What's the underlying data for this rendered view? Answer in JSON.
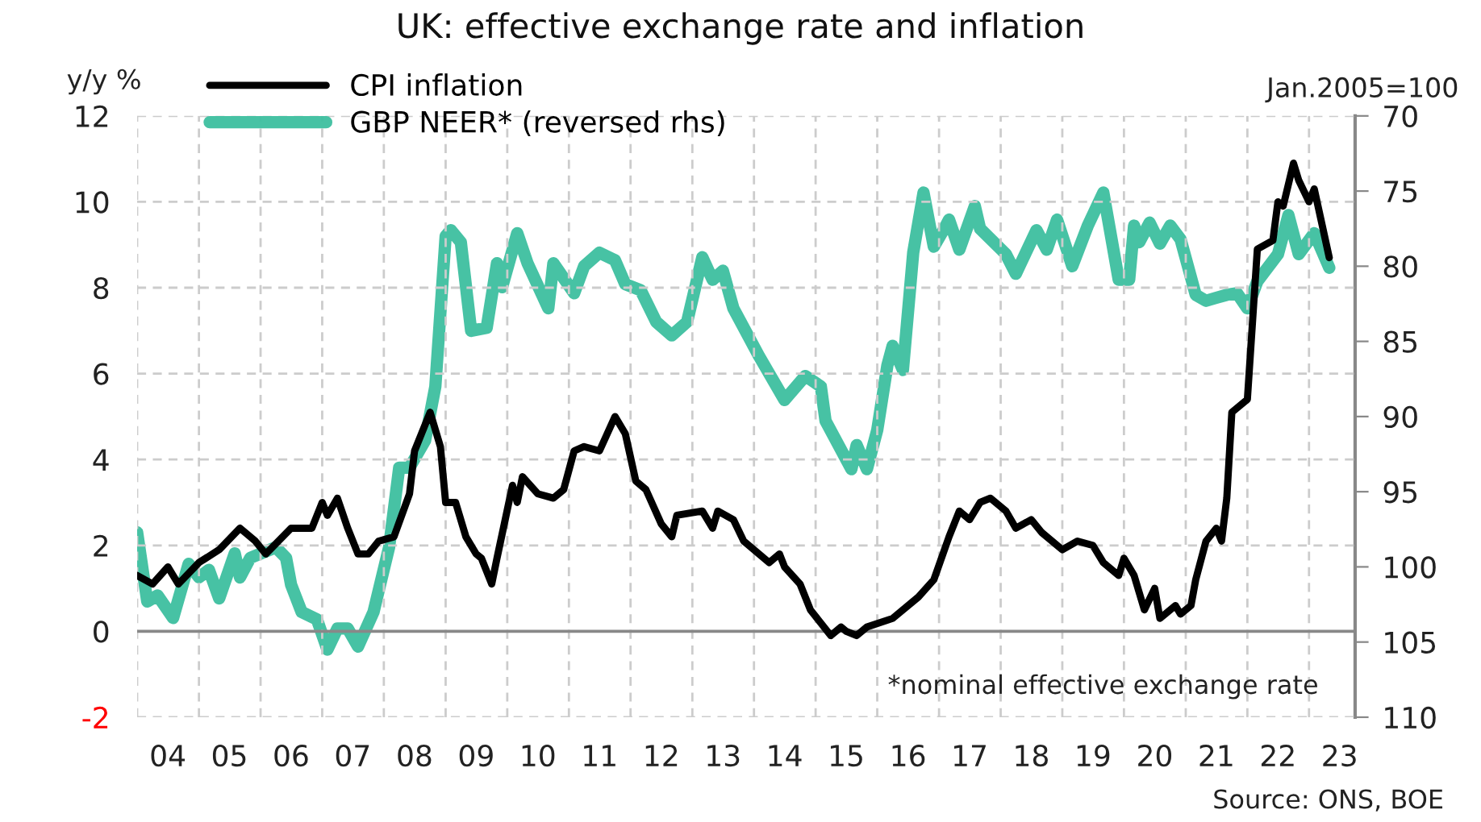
{
  "chart_data": {
    "type": "line",
    "title": "UK: effective exchange rate and inflation",
    "ylabel": "y/y %",
    "y2label": "Jan.2005=100",
    "annotations": [
      "*nominal effective exchange rate",
      "Source: ONS, BOE"
    ],
    "xlim": [
      "2004-01",
      "2023-10"
    ],
    "xticks": [
      {
        "value": "2004-01",
        "label": null
      },
      {
        "value": "2004-07",
        "label": "04"
      },
      {
        "value": "2005-01",
        "label": null
      },
      {
        "value": "2005-07",
        "label": "05"
      },
      {
        "value": "2006-01",
        "label": null
      },
      {
        "value": "2006-07",
        "label": "06"
      },
      {
        "value": "2007-01",
        "label": null
      },
      {
        "value": "2007-07",
        "label": "07"
      },
      {
        "value": "2008-01",
        "label": null
      },
      {
        "value": "2008-07",
        "label": "08"
      },
      {
        "value": "2009-01",
        "label": null
      },
      {
        "value": "2009-07",
        "label": "09"
      },
      {
        "value": "2010-01",
        "label": null
      },
      {
        "value": "2010-07",
        "label": "10"
      },
      {
        "value": "2011-01",
        "label": null
      },
      {
        "value": "2011-07",
        "label": "11"
      },
      {
        "value": "2012-01",
        "label": null
      },
      {
        "value": "2012-07",
        "label": "12"
      },
      {
        "value": "2013-01",
        "label": null
      },
      {
        "value": "2013-07",
        "label": "13"
      },
      {
        "value": "2014-01",
        "label": null
      },
      {
        "value": "2014-07",
        "label": "14"
      },
      {
        "value": "2015-01",
        "label": null
      },
      {
        "value": "2015-07",
        "label": "15"
      },
      {
        "value": "2016-01",
        "label": null
      },
      {
        "value": "2016-07",
        "label": "16"
      },
      {
        "value": "2017-01",
        "label": null
      },
      {
        "value": "2017-07",
        "label": "17"
      },
      {
        "value": "2018-01",
        "label": null
      },
      {
        "value": "2018-07",
        "label": "18"
      },
      {
        "value": "2019-01",
        "label": null
      },
      {
        "value": "2019-07",
        "label": "19"
      },
      {
        "value": "2020-01",
        "label": null
      },
      {
        "value": "2020-07",
        "label": "20"
      },
      {
        "value": "2021-01",
        "label": null
      },
      {
        "value": "2021-07",
        "label": "21"
      },
      {
        "value": "2022-01",
        "label": null
      },
      {
        "value": "2022-07",
        "label": "22"
      },
      {
        "value": "2023-01",
        "label": null
      },
      {
        "value": "2023-07",
        "label": "23"
      }
    ],
    "ylim": [
      -2,
      12
    ],
    "yticks": [
      -2,
      0,
      2,
      4,
      6,
      8,
      10,
      12
    ],
    "y2lim": [
      110,
      70
    ],
    "y2ticks": [
      70,
      75,
      80,
      85,
      90,
      95,
      100,
      105,
      110
    ],
    "ref_lines": [
      {
        "axis": "y",
        "value": 0,
        "color": "#888888",
        "line_style": "solid"
      }
    ],
    "grid": true,
    "legend": "top left",
    "marker": "none",
    "line_style": "solid",
    "series": [
      {
        "name": "CPI inflation",
        "color": "#000000",
        "x": [
          "2004-01",
          "2004-04",
          "2004-07",
          "2004-09",
          "2005-01",
          "2005-05",
          "2005-09",
          "2005-12",
          "2006-02",
          "2006-07",
          "2006-11",
          "2007-01",
          "2007-02",
          "2007-04",
          "2007-06",
          "2007-08",
          "2007-10",
          "2007-12",
          "2008-03",
          "2008-06",
          "2008-07",
          "2008-10",
          "2008-12",
          "2009-01",
          "2009-03",
          "2009-05",
          "2009-07",
          "2009-08",
          "2009-10",
          "2009-11",
          "2010-02",
          "2010-03",
          "2010-04",
          "2010-07",
          "2010-10",
          "2010-12",
          "2011-02",
          "2011-04",
          "2011-07",
          "2011-10",
          "2011-12",
          "2012-02",
          "2012-04",
          "2012-07",
          "2012-09",
          "2012-10",
          "2013-03",
          "2013-05",
          "2013-06",
          "2013-09",
          "2013-11",
          "2014-04",
          "2014-06",
          "2014-07",
          "2014-10",
          "2014-12",
          "2015-04",
          "2015-06",
          "2015-07",
          "2015-09",
          "2015-11",
          "2016-04",
          "2016-09",
          "2016-12",
          "2017-03",
          "2017-05",
          "2017-07",
          "2017-09",
          "2017-11",
          "2018-02",
          "2018-04",
          "2018-07",
          "2018-09",
          "2019-01",
          "2019-04",
          "2019-07",
          "2019-09",
          "2019-12",
          "2020-01",
          "2020-03",
          "2020-05",
          "2020-07",
          "2020-08",
          "2020-11",
          "2020-12",
          "2021-02",
          "2021-03",
          "2021-05",
          "2021-07",
          "2021-08",
          "2021-09",
          "2021-10",
          "2022-01",
          "2022-03",
          "2022-06",
          "2022-07",
          "2022-08",
          "2022-10",
          "2022-11",
          "2023-01",
          "2023-02",
          "2023-05"
        ],
        "values": [
          1.3,
          1.1,
          1.5,
          1.1,
          1.6,
          1.9,
          2.4,
          2.1,
          1.8,
          2.4,
          2.4,
          3.0,
          2.7,
          3.1,
          2.4,
          1.8,
          1.8,
          2.1,
          2.2,
          3.2,
          4.2,
          5.1,
          4.3,
          3.0,
          3.0,
          2.2,
          1.8,
          1.7,
          1.1,
          1.7,
          3.4,
          3.0,
          3.6,
          3.2,
          3.1,
          3.3,
          4.2,
          4.3,
          4.2,
          5.0,
          4.6,
          3.5,
          3.3,
          2.5,
          2.2,
          2.7,
          2.8,
          2.4,
          2.8,
          2.6,
          2.1,
          1.6,
          1.8,
          1.5,
          1.1,
          0.5,
          -0.1,
          0.1,
          0.0,
          -0.1,
          0.1,
          0.3,
          0.8,
          1.2,
          2.2,
          2.8,
          2.6,
          3.0,
          3.1,
          2.8,
          2.4,
          2.6,
          2.3,
          1.9,
          2.1,
          2.0,
          1.6,
          1.3,
          1.7,
          1.3,
          0.5,
          1.0,
          0.3,
          0.6,
          0.4,
          0.6,
          1.2,
          2.1,
          2.4,
          2.1,
          3.1,
          5.1,
          5.4,
          8.9,
          9.1,
          10.0,
          9.9,
          10.9,
          10.5,
          10.0,
          10.3,
          8.7
        ]
      },
      {
        "name": "GBP NEER* (reversed rhs)",
        "color": "#3dbf9f",
        "axis": "y2",
        "x": [
          "2004-01",
          "2004-03",
          "2004-05",
          "2004-08",
          "2004-11",
          "2005-01",
          "2005-03",
          "2005-05",
          "2005-08",
          "2005-09",
          "2005-11",
          "2006-04",
          "2006-06",
          "2006-07",
          "2006-09",
          "2006-12",
          "2007-02",
          "2007-04",
          "2007-06",
          "2007-08",
          "2007-11",
          "2008-02",
          "2008-04",
          "2008-06",
          "2008-09",
          "2008-11",
          "2009-01",
          "2009-02",
          "2009-04",
          "2009-06",
          "2009-09",
          "2009-11",
          "2009-12",
          "2010-03",
          "2010-05",
          "2010-09",
          "2010-10",
          "2011-02",
          "2011-04",
          "2011-07",
          "2011-10",
          "2011-12",
          "2012-03",
          "2012-06",
          "2012-09",
          "2012-12",
          "2013-03",
          "2013-05",
          "2013-07",
          "2013-09",
          "2014-02",
          "2014-07",
          "2014-11",
          "2015-02",
          "2015-03",
          "2015-08",
          "2015-09",
          "2015-11",
          "2016-01",
          "2016-03",
          "2016-04",
          "2016-06",
          "2016-08",
          "2016-10",
          "2016-12",
          "2017-02",
          "2017-03",
          "2017-05",
          "2017-08",
          "2017-09",
          "2018-02",
          "2018-04",
          "2018-08",
          "2018-10",
          "2018-12",
          "2019-03",
          "2019-06",
          "2019-09",
          "2019-12",
          "2020-02",
          "2020-03",
          "2020-04",
          "2020-06",
          "2020-08",
          "2020-10",
          "2020-12",
          "2021-03",
          "2021-05",
          "2021-07",
          "2021-09",
          "2021-11",
          "2022-01",
          "2022-03",
          "2022-07",
          "2022-09",
          "2022-11",
          "2023-02",
          "2023-05"
        ],
        "values": [
          97.7,
          102.3,
          101.9,
          103.4,
          99.8,
          100.7,
          100.2,
          102.1,
          99.1,
          100.7,
          99.4,
          98.7,
          99.4,
          101.2,
          103.0,
          103.5,
          105.5,
          104.1,
          104.1,
          105.3,
          103.0,
          98.7,
          93.4,
          93.4,
          91.6,
          88.0,
          78.0,
          77.6,
          78.4,
          84.3,
          84.1,
          79.8,
          81.4,
          77.8,
          79.8,
          82.8,
          79.8,
          81.8,
          80.0,
          79.1,
          79.6,
          81.2,
          81.6,
          83.7,
          84.6,
          83.7,
          79.4,
          80.9,
          80.3,
          82.8,
          86.0,
          88.9,
          87.3,
          88.0,
          90.3,
          93.5,
          91.9,
          93.5,
          90.9,
          86.6,
          85.3,
          86.9,
          79.1,
          75.1,
          78.7,
          77.5,
          76.9,
          78.9,
          76.0,
          77.5,
          79.2,
          80.5,
          77.6,
          78.9,
          76.9,
          80.0,
          77.3,
          75.1,
          80.9,
          80.9,
          77.3,
          78.4,
          77.1,
          78.5,
          77.3,
          78.2,
          81.9,
          82.3,
          82.1,
          81.9,
          81.8,
          82.8,
          81.0,
          79.2,
          76.6,
          79.2,
          77.8,
          80.1
        ]
      }
    ]
  }
}
